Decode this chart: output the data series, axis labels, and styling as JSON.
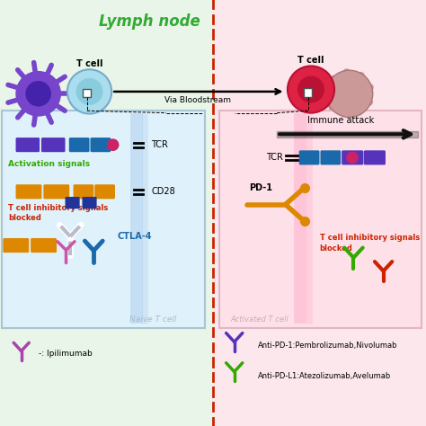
{
  "bg_left_color": "#e8f5e8",
  "bg_right_color": "#fce8ec",
  "lymph_node_title": "Lymph node",
  "lymph_node_color": "#33aa33",
  "t_cell_label_left": "T cell",
  "t_cell_label_right": "T cell",
  "arrow_label": "Via Bloodstream",
  "tcr_label_left": "TCR",
  "cd28_label": "CD28",
  "ctla4_label": "CTLA-4",
  "activation_label": "Activation signals",
  "inhibitory_label_left": "T cell inhibitory signals\nblocked",
  "naive_label": "Naive T cell",
  "activated_label": "Activated T cell",
  "tcr_label_right": "TCR",
  "pd1_label": "PD-1",
  "immune_attack_label": "Immune attack",
  "inhibitory_label_right": "T cell inhibitory signals\nblocked",
  "legend_ipili": "-: Ipilimumab",
  "legend_pd1": "Anti-PD-1:Pembrolizumab,Nivolumab",
  "legend_pdl1": "Anti-PD-L1:Atezolizumab,Avelumab",
  "purple_color": "#5533bb",
  "blue_color": "#1a6aab",
  "orange_color": "#dd8800",
  "pink_color": "#ee66aa",
  "red_color": "#cc2200",
  "green_color": "#33aa00",
  "dark_blue": "#223399",
  "magenta_color": "#aa44aa",
  "divider_color": "#cc2200"
}
